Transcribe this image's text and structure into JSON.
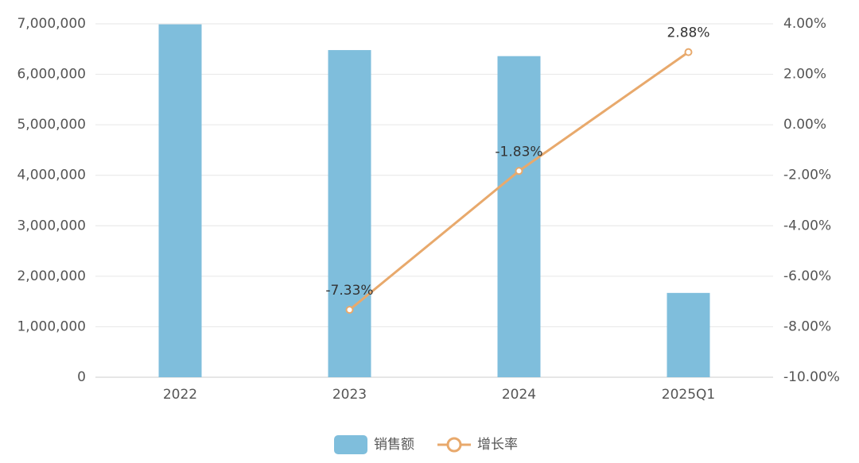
{
  "chart_data": {
    "type": "bar-line",
    "categories": [
      "2022",
      "2023",
      "2024",
      "2025Q1"
    ],
    "series": [
      {
        "name": "销售额",
        "type": "bar",
        "color": "#7fbedc",
        "values": [
          6990000,
          6480000,
          6360000,
          1670000
        ]
      },
      {
        "name": "增长率",
        "type": "line",
        "axis": "y2",
        "color": "#e8a96c",
        "values": [
          null,
          -7.33,
          -1.83,
          2.88
        ],
        "value_labels": [
          null,
          "-7.33%",
          "-1.83%",
          "2.88%"
        ]
      }
    ],
    "ylim": [
      0,
      7000000
    ],
    "yticks": [
      0,
      {
        "value": 1000000,
        "label": "1,000,000"
      },
      {
        "value": 2000000,
        "label": "2,000,000"
      },
      {
        "value": 3000000,
        "label": "3,000,000"
      },
      {
        "value": 4000000,
        "label": "4,000,000"
      },
      {
        "value": 5000000,
        "label": "5,000,000"
      },
      {
        "value": 6000000,
        "label": "6,000,000"
      },
      {
        "value": 7000000,
        "label": "7,000,000"
      }
    ],
    "y2lim": [
      -10,
      4
    ],
    "y2ticks": [
      {
        "value": -10,
        "label": "-10.00%"
      },
      {
        "value": -8,
        "label": "-8.00%"
      },
      {
        "value": -6,
        "label": "-6.00%"
      },
      {
        "value": -4,
        "label": "-4.00%"
      },
      {
        "value": -2,
        "label": "-2.00%"
      },
      {
        "value": 0,
        "label": "0.00%"
      },
      {
        "value": 2,
        "label": "2.00%"
      },
      {
        "value": 4,
        "label": "4.00%"
      }
    ],
    "grid": true,
    "legend": "bottom"
  }
}
